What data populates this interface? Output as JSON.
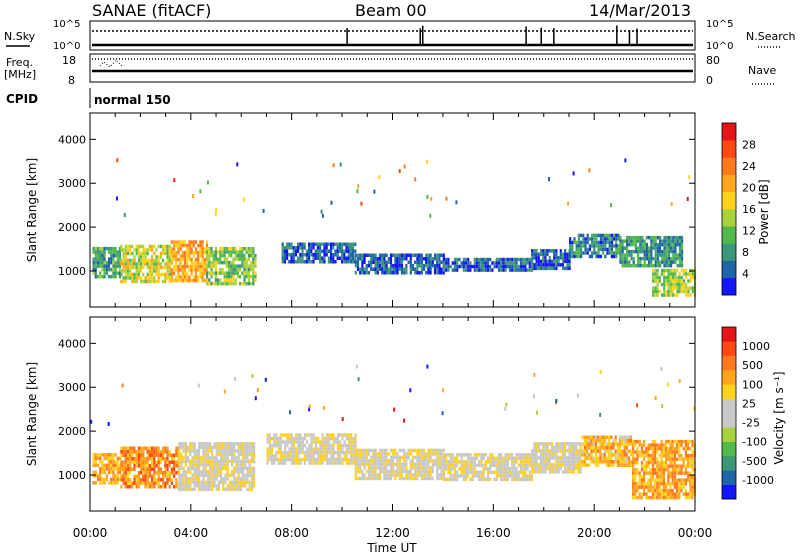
{
  "header": {
    "station": "SANAE (fitACF)",
    "beam": "Beam 00",
    "date": "14/Mar/2013"
  },
  "strip_panels": {
    "sky_noise": {
      "left_label": "N.Sky",
      "left_ticks": [
        "10^5",
        "10^0"
      ],
      "right_label": "N.Search",
      "right_ticks": [
        "10^5",
        "10^0"
      ]
    },
    "frequency": {
      "left_label_1": "Freq.",
      "left_label_2": "[MHz]",
      "left_ticks": [
        "18",
        "8"
      ],
      "right_label": "Nave",
      "right_ticks": [
        "80",
        "0"
      ]
    },
    "cpid": {
      "left_label": "CPID",
      "value": "normal 150"
    }
  },
  "x_axis": {
    "label": "Time UT",
    "ticks": [
      "00:00",
      "04:00",
      "08:00",
      "12:00",
      "16:00",
      "20:00",
      "00:00"
    ]
  },
  "chart_data": [
    {
      "type": "heatmap",
      "title": "",
      "xlabel": "",
      "ylabel": "Slant Range [km]",
      "x_range_hours": [
        0,
        24
      ],
      "ylim_km": [
        180,
        4600
      ],
      "y_ticks": [
        1000,
        2000,
        3000,
        4000
      ],
      "colorbar_label": "Power [dB]",
      "colorbar_ticks": [
        "4",
        "8",
        "12",
        "16",
        "20",
        "24",
        "28"
      ],
      "colorbar_colors": [
        "#1414ff",
        "#1e64a8",
        "#3c9678",
        "#52b84c",
        "#a8d23c",
        "#ffd21e",
        "#ffa51e",
        "#ff7a1e",
        "#ff4814",
        "#e61414"
      ],
      "blocks": [
        {
          "t0": 0.1,
          "t1": 1.2,
          "r0": 900,
          "r1": 1550,
          "level": 2.5
        },
        {
          "t0": 1.2,
          "t1": 3.2,
          "r0": 750,
          "r1": 1600,
          "level": 4.5
        },
        {
          "t0": 3.2,
          "t1": 4.6,
          "r0": 800,
          "r1": 1700,
          "level": 6.0
        },
        {
          "t0": 4.6,
          "t1": 6.6,
          "r0": 750,
          "r1": 1550,
          "level": 3.5
        },
        {
          "t0": 7.6,
          "t1": 10.5,
          "r0": 1250,
          "r1": 1650,
          "level": 1.0
        },
        {
          "t0": 10.5,
          "t1": 14.0,
          "r0": 950,
          "r1": 1400,
          "level": 1.0
        },
        {
          "t0": 14.0,
          "t1": 17.5,
          "r0": 1000,
          "r1": 1300,
          "level": 1.0
        },
        {
          "t0": 17.5,
          "t1": 19.0,
          "r0": 1050,
          "r1": 1500,
          "level": 1.0
        },
        {
          "t0": 19.0,
          "t1": 21.0,
          "r0": 1300,
          "r1": 1850,
          "level": 1.5
        },
        {
          "t0": 21.0,
          "t1": 23.5,
          "r0": 1100,
          "r1": 1800,
          "level": 2.0
        },
        {
          "t0": 22.3,
          "t1": 24.0,
          "r0": 450,
          "r1": 1050,
          "level": 4.0
        }
      ]
    },
    {
      "type": "heatmap",
      "title": "",
      "xlabel": "Time UT",
      "ylabel": "Slant Range [km]",
      "x_range_hours": [
        0,
        24
      ],
      "ylim_km": [
        180,
        4600
      ],
      "y_ticks": [
        1000,
        2000,
        3000,
        4000
      ],
      "colorbar_label": "Velocity [m s⁻¹]",
      "colorbar_ticks": [
        "1000",
        "500",
        "100",
        "25",
        "-25",
        "-100",
        "-500",
        "-1000"
      ],
      "colorbar_colors": [
        "#1414ff",
        "#1e64a8",
        "#3c9678",
        "#52b84c",
        "#a8d23c",
        "#c8c8c8",
        "#c8c8c8",
        "#ffd21e",
        "#ffa51e",
        "#ff7a1e",
        "#ff4814",
        "#e61414"
      ],
      "blocks": [
        {
          "t0": 0.1,
          "t1": 1.2,
          "r0": 800,
          "r1": 1500,
          "level": 8.0
        },
        {
          "t0": 1.2,
          "t1": 3.5,
          "r0": 700,
          "r1": 1650,
          "level": 8.5
        },
        {
          "t0": 3.5,
          "t1": 6.5,
          "r0": 650,
          "r1": 1750,
          "level": 6.0
        },
        {
          "t0": 7.0,
          "t1": 10.5,
          "r0": 1250,
          "r1": 1950,
          "level": 6.0
        },
        {
          "t0": 10.5,
          "t1": 14.0,
          "r0": 900,
          "r1": 1600,
          "level": 6.0
        },
        {
          "t0": 14.0,
          "t1": 17.5,
          "r0": 900,
          "r1": 1500,
          "level": 6.0
        },
        {
          "t0": 17.5,
          "t1": 19.5,
          "r0": 1050,
          "r1": 1750,
          "level": 6.0
        },
        {
          "t0": 19.5,
          "t1": 21.5,
          "r0": 1200,
          "r1": 1900,
          "level": 7.5
        },
        {
          "t0": 21.5,
          "t1": 24.0,
          "r0": 500,
          "r1": 1800,
          "level": 8.0
        }
      ]
    }
  ]
}
